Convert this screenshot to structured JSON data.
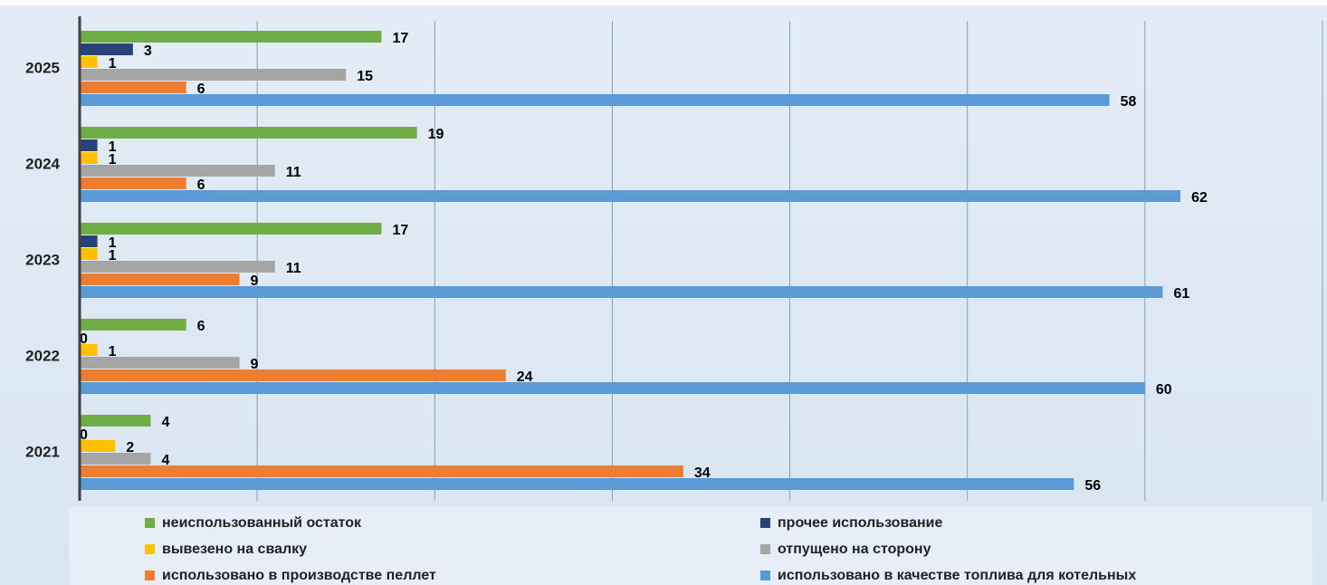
{
  "chart_data": {
    "type": "hbar",
    "categories": [
      "2021",
      "2022",
      "2023",
      "2024",
      "2025"
    ],
    "series": [
      {
        "name": "неиспользованный остаток",
        "color": "#70ad47",
        "values": [
          4,
          6,
          17,
          19,
          17
        ]
      },
      {
        "name": "прочее использование",
        "color": "#264478",
        "values": [
          0,
          0,
          1,
          1,
          3
        ]
      },
      {
        "name": "вывезено на свалку",
        "color": "#ffc000",
        "values": [
          2,
          1,
          1,
          1,
          1
        ]
      },
      {
        "name": "отпущено на сторону",
        "color": "#a5a5a5",
        "values": [
          4,
          9,
          11,
          11,
          15
        ]
      },
      {
        "name": "использовано в производстве пеллет",
        "color": "#ed7d31",
        "values": [
          34,
          24,
          9,
          6,
          6
        ]
      },
      {
        "name": "использовано в качестве топлива для котельных",
        "color": "#5b9bd5",
        "values": [
          56,
          60,
          61,
          62,
          58
        ]
      }
    ],
    "xlim": [
      0,
      70
    ],
    "xticks": [
      0,
      10,
      20,
      30,
      40,
      50,
      60,
      70
    ],
    "grid": true
  }
}
